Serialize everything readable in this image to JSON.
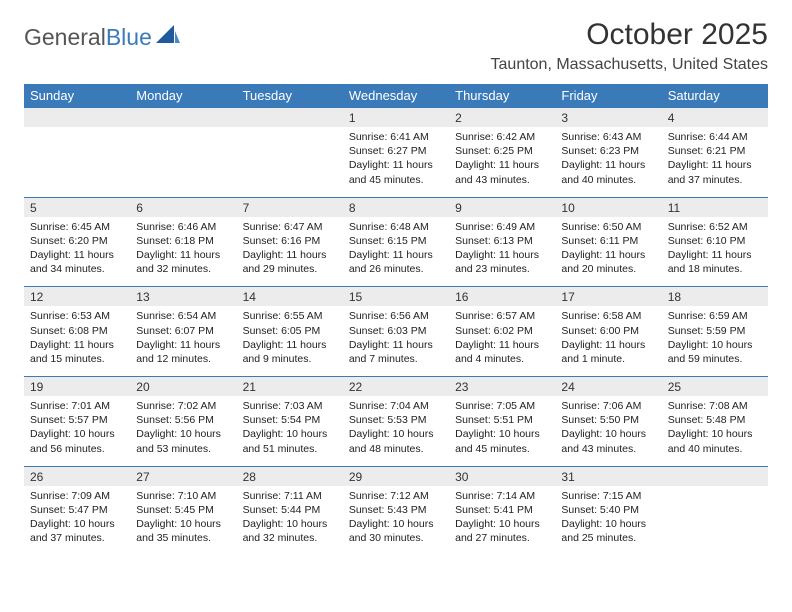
{
  "logo": {
    "word1": "General",
    "word2": "Blue",
    "color1": "#555555",
    "color2": "#3a7ab8"
  },
  "title": "October 2025",
  "location": "Taunton, Massachusetts, United States",
  "colors": {
    "header_bg": "#3a7ab8",
    "daterow_bg": "#ececec",
    "row_border": "#3a7ab8"
  },
  "dayHeaders": [
    "Sunday",
    "Monday",
    "Tuesday",
    "Wednesday",
    "Thursday",
    "Friday",
    "Saturday"
  ],
  "weeks": [
    [
      null,
      null,
      null,
      {
        "date": "1",
        "sunrise": "6:41 AM",
        "sunset": "6:27 PM",
        "daylight": "11 hours and 45 minutes."
      },
      {
        "date": "2",
        "sunrise": "6:42 AM",
        "sunset": "6:25 PM",
        "daylight": "11 hours and 43 minutes."
      },
      {
        "date": "3",
        "sunrise": "6:43 AM",
        "sunset": "6:23 PM",
        "daylight": "11 hours and 40 minutes."
      },
      {
        "date": "4",
        "sunrise": "6:44 AM",
        "sunset": "6:21 PM",
        "daylight": "11 hours and 37 minutes."
      }
    ],
    [
      {
        "date": "5",
        "sunrise": "6:45 AM",
        "sunset": "6:20 PM",
        "daylight": "11 hours and 34 minutes."
      },
      {
        "date": "6",
        "sunrise": "6:46 AM",
        "sunset": "6:18 PM",
        "daylight": "11 hours and 32 minutes."
      },
      {
        "date": "7",
        "sunrise": "6:47 AM",
        "sunset": "6:16 PM",
        "daylight": "11 hours and 29 minutes."
      },
      {
        "date": "8",
        "sunrise": "6:48 AM",
        "sunset": "6:15 PM",
        "daylight": "11 hours and 26 minutes."
      },
      {
        "date": "9",
        "sunrise": "6:49 AM",
        "sunset": "6:13 PM",
        "daylight": "11 hours and 23 minutes."
      },
      {
        "date": "10",
        "sunrise": "6:50 AM",
        "sunset": "6:11 PM",
        "daylight": "11 hours and 20 minutes."
      },
      {
        "date": "11",
        "sunrise": "6:52 AM",
        "sunset": "6:10 PM",
        "daylight": "11 hours and 18 minutes."
      }
    ],
    [
      {
        "date": "12",
        "sunrise": "6:53 AM",
        "sunset": "6:08 PM",
        "daylight": "11 hours and 15 minutes."
      },
      {
        "date": "13",
        "sunrise": "6:54 AM",
        "sunset": "6:07 PM",
        "daylight": "11 hours and 12 minutes."
      },
      {
        "date": "14",
        "sunrise": "6:55 AM",
        "sunset": "6:05 PM",
        "daylight": "11 hours and 9 minutes."
      },
      {
        "date": "15",
        "sunrise": "6:56 AM",
        "sunset": "6:03 PM",
        "daylight": "11 hours and 7 minutes."
      },
      {
        "date": "16",
        "sunrise": "6:57 AM",
        "sunset": "6:02 PM",
        "daylight": "11 hours and 4 minutes."
      },
      {
        "date": "17",
        "sunrise": "6:58 AM",
        "sunset": "6:00 PM",
        "daylight": "11 hours and 1 minute."
      },
      {
        "date": "18",
        "sunrise": "6:59 AM",
        "sunset": "5:59 PM",
        "daylight": "10 hours and 59 minutes."
      }
    ],
    [
      {
        "date": "19",
        "sunrise": "7:01 AM",
        "sunset": "5:57 PM",
        "daylight": "10 hours and 56 minutes."
      },
      {
        "date": "20",
        "sunrise": "7:02 AM",
        "sunset": "5:56 PM",
        "daylight": "10 hours and 53 minutes."
      },
      {
        "date": "21",
        "sunrise": "7:03 AM",
        "sunset": "5:54 PM",
        "daylight": "10 hours and 51 minutes."
      },
      {
        "date": "22",
        "sunrise": "7:04 AM",
        "sunset": "5:53 PM",
        "daylight": "10 hours and 48 minutes."
      },
      {
        "date": "23",
        "sunrise": "7:05 AM",
        "sunset": "5:51 PM",
        "daylight": "10 hours and 45 minutes."
      },
      {
        "date": "24",
        "sunrise": "7:06 AM",
        "sunset": "5:50 PM",
        "daylight": "10 hours and 43 minutes."
      },
      {
        "date": "25",
        "sunrise": "7:08 AM",
        "sunset": "5:48 PM",
        "daylight": "10 hours and 40 minutes."
      }
    ],
    [
      {
        "date": "26",
        "sunrise": "7:09 AM",
        "sunset": "5:47 PM",
        "daylight": "10 hours and 37 minutes."
      },
      {
        "date": "27",
        "sunrise": "7:10 AM",
        "sunset": "5:45 PM",
        "daylight": "10 hours and 35 minutes."
      },
      {
        "date": "28",
        "sunrise": "7:11 AM",
        "sunset": "5:44 PM",
        "daylight": "10 hours and 32 minutes."
      },
      {
        "date": "29",
        "sunrise": "7:12 AM",
        "sunset": "5:43 PM",
        "daylight": "10 hours and 30 minutes."
      },
      {
        "date": "30",
        "sunrise": "7:14 AM",
        "sunset": "5:41 PM",
        "daylight": "10 hours and 27 minutes."
      },
      {
        "date": "31",
        "sunrise": "7:15 AM",
        "sunset": "5:40 PM",
        "daylight": "10 hours and 25 minutes."
      },
      null
    ]
  ],
  "labels": {
    "sunrise": "Sunrise: ",
    "sunset": "Sunset: ",
    "daylight": "Daylight: "
  }
}
